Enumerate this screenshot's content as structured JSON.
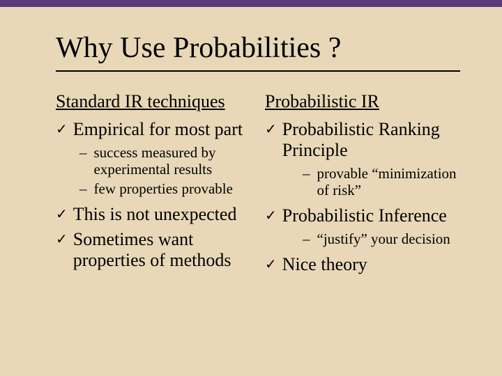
{
  "colors": {
    "background": "#e8d8b8",
    "accent": "#5a3a7a",
    "text": "#000000"
  },
  "title": "Why Use Probabilities ?",
  "left": {
    "heading": "Standard IR techniques",
    "b1": "Empirical for most part",
    "b1_s1": "success measured by experimental results",
    "b1_s2": "few properties provable",
    "b2": "This is not unexpected",
    "b3": "Sometimes want properties of methods"
  },
  "right": {
    "heading": "Probabilistic IR",
    "b1": "Probabilistic Ranking Principle",
    "b1_s1": "provable “minimization of risk”",
    "b2": "Probabilistic Inference",
    "b2_s1": "“justify” your decision",
    "b3": "Nice theory"
  },
  "bullets": {
    "check": "✓",
    "dash": "–"
  },
  "typography": {
    "title_fontsize": 42,
    "heading_fontsize": 26,
    "l1_fontsize": 26,
    "l2_fontsize": 21,
    "font_family": "Times New Roman"
  }
}
